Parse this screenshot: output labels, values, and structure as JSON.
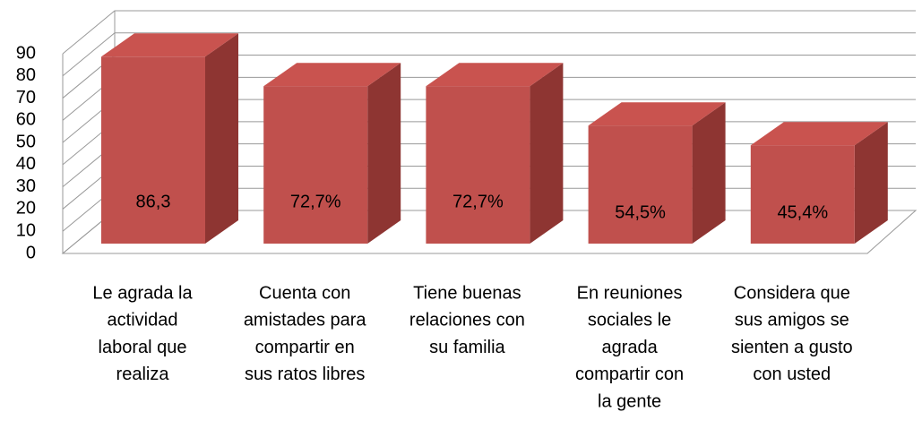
{
  "chart_data": {
    "type": "bar3d",
    "categories": [
      [
        "Le agrada la",
        "actividad",
        "laboral que",
        "realiza"
      ],
      [
        "Cuenta con",
        "amistades para",
        "compartir en",
        "sus ratos libres"
      ],
      [
        "Tiene buenas",
        "relaciones con",
        "su familia"
      ],
      [
        "En reuniones",
        "sociales le",
        "agrada",
        "compartir con",
        "la gente"
      ],
      [
        "Considera que",
        "sus amigos se",
        "sienten a gusto",
        "con usted"
      ]
    ],
    "values": [
      86.3,
      72.7,
      72.7,
      54.5,
      45.4
    ],
    "value_labels": [
      "86,3",
      "72,7%",
      "72,7%",
      "54,5%",
      "45,4%"
    ],
    "color": "#c0504d",
    "ylim": [
      0,
      90
    ],
    "yticks": [
      0,
      10,
      20,
      30,
      40,
      50,
      60,
      70,
      80,
      90
    ],
    "grid": true
  }
}
